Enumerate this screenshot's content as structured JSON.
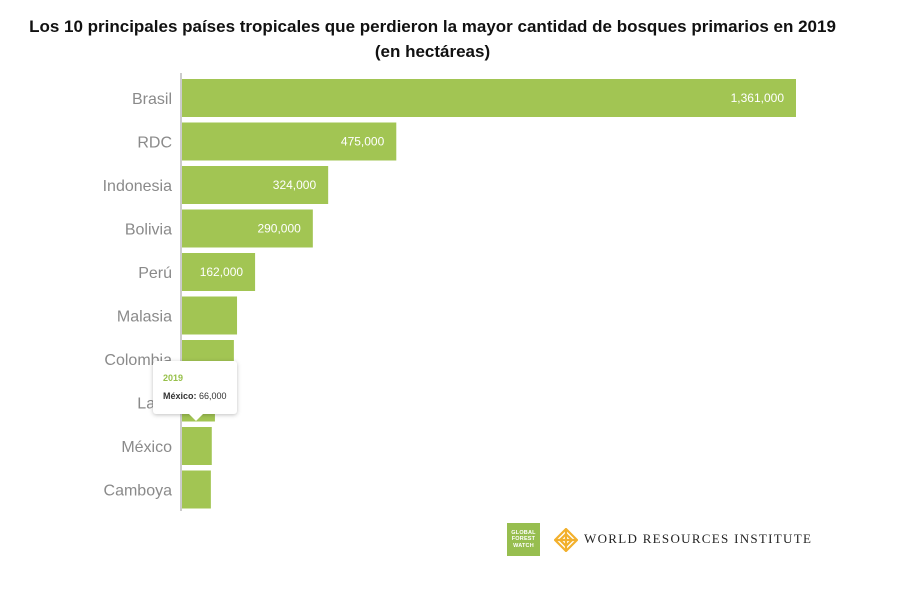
{
  "chart_data": {
    "type": "bar",
    "orientation": "horizontal",
    "title": "Los 10 principales países tropicales que perdieron la mayor cantidad de bosques primarios en 2019 (en hectáreas)",
    "categories": [
      "Brasil",
      "RDC",
      "Indonesia",
      "Bolivia",
      "Perú",
      "Malasia",
      "Colombia",
      "Laos",
      "México",
      "Camboya"
    ],
    "values": [
      1361000,
      475000,
      324000,
      290000,
      162000,
      122000,
      115000,
      73000,
      66000,
      64000
    ],
    "value_labels": [
      "1,361,000",
      "475,000",
      "324,000",
      "290,000",
      "162,000",
      "",
      "",
      "",
      "",
      ""
    ],
    "bar_color": "#a2c553",
    "xlim": [
      0,
      1361000
    ],
    "grid": false,
    "legend": "none"
  },
  "tooltip": {
    "year": "2019",
    "country": "México:",
    "value": "66,000"
  },
  "logos": {
    "gfw_lines": [
      "GLOBAL",
      "FOREST",
      "WATCH"
    ],
    "wri_text": "WORLD RESOURCES INSTITUTE",
    "gfw_color": "#97be4f",
    "wri_icon_color": "#f2b02c"
  }
}
